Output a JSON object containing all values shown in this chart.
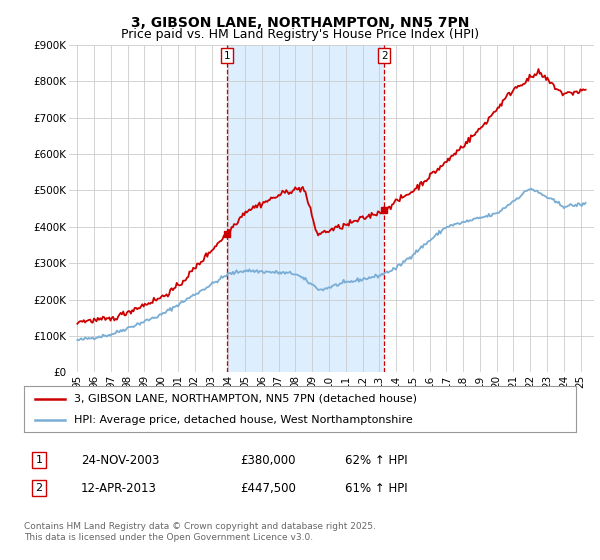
{
  "title": "3, GIBSON LANE, NORTHAMPTON, NN5 7PN",
  "subtitle": "Price paid vs. HM Land Registry's House Price Index (HPI)",
  "ylabel_ticks": [
    "£0",
    "£100K",
    "£200K",
    "£300K",
    "£400K",
    "£500K",
    "£600K",
    "£700K",
    "£800K",
    "£900K"
  ],
  "ylim": [
    0,
    900000
  ],
  "sale1_year": 2003.9,
  "sale1_price": 380000,
  "sale1_label": "1",
  "sale2_year": 2013.3,
  "sale2_price": 447500,
  "sale2_label": "2",
  "hpi_color": "#7aadd4",
  "price_color": "#cc0000",
  "annotation_color": "#cc0000",
  "shade_color": "#ddeeff",
  "grid_color": "#cccccc",
  "background_color": "#ffffff",
  "legend_label_red": "3, GIBSON LANE, NORTHAMPTON, NN5 7PN (detached house)",
  "legend_label_blue": "HPI: Average price, detached house, West Northamptonshire",
  "table_row1": [
    "1",
    "24-NOV-2003",
    "£380,000",
    "62% ↑ HPI"
  ],
  "table_row2": [
    "2",
    "12-APR-2013",
    "£447,500",
    "61% ↑ HPI"
  ],
  "footnote": "Contains HM Land Registry data © Crown copyright and database right 2025.\nThis data is licensed under the Open Government Licence v3.0.",
  "title_fontsize": 10,
  "subtitle_fontsize": 9,
  "tick_fontsize": 7.5,
  "legend_fontsize": 8,
  "table_fontsize": 8.5
}
